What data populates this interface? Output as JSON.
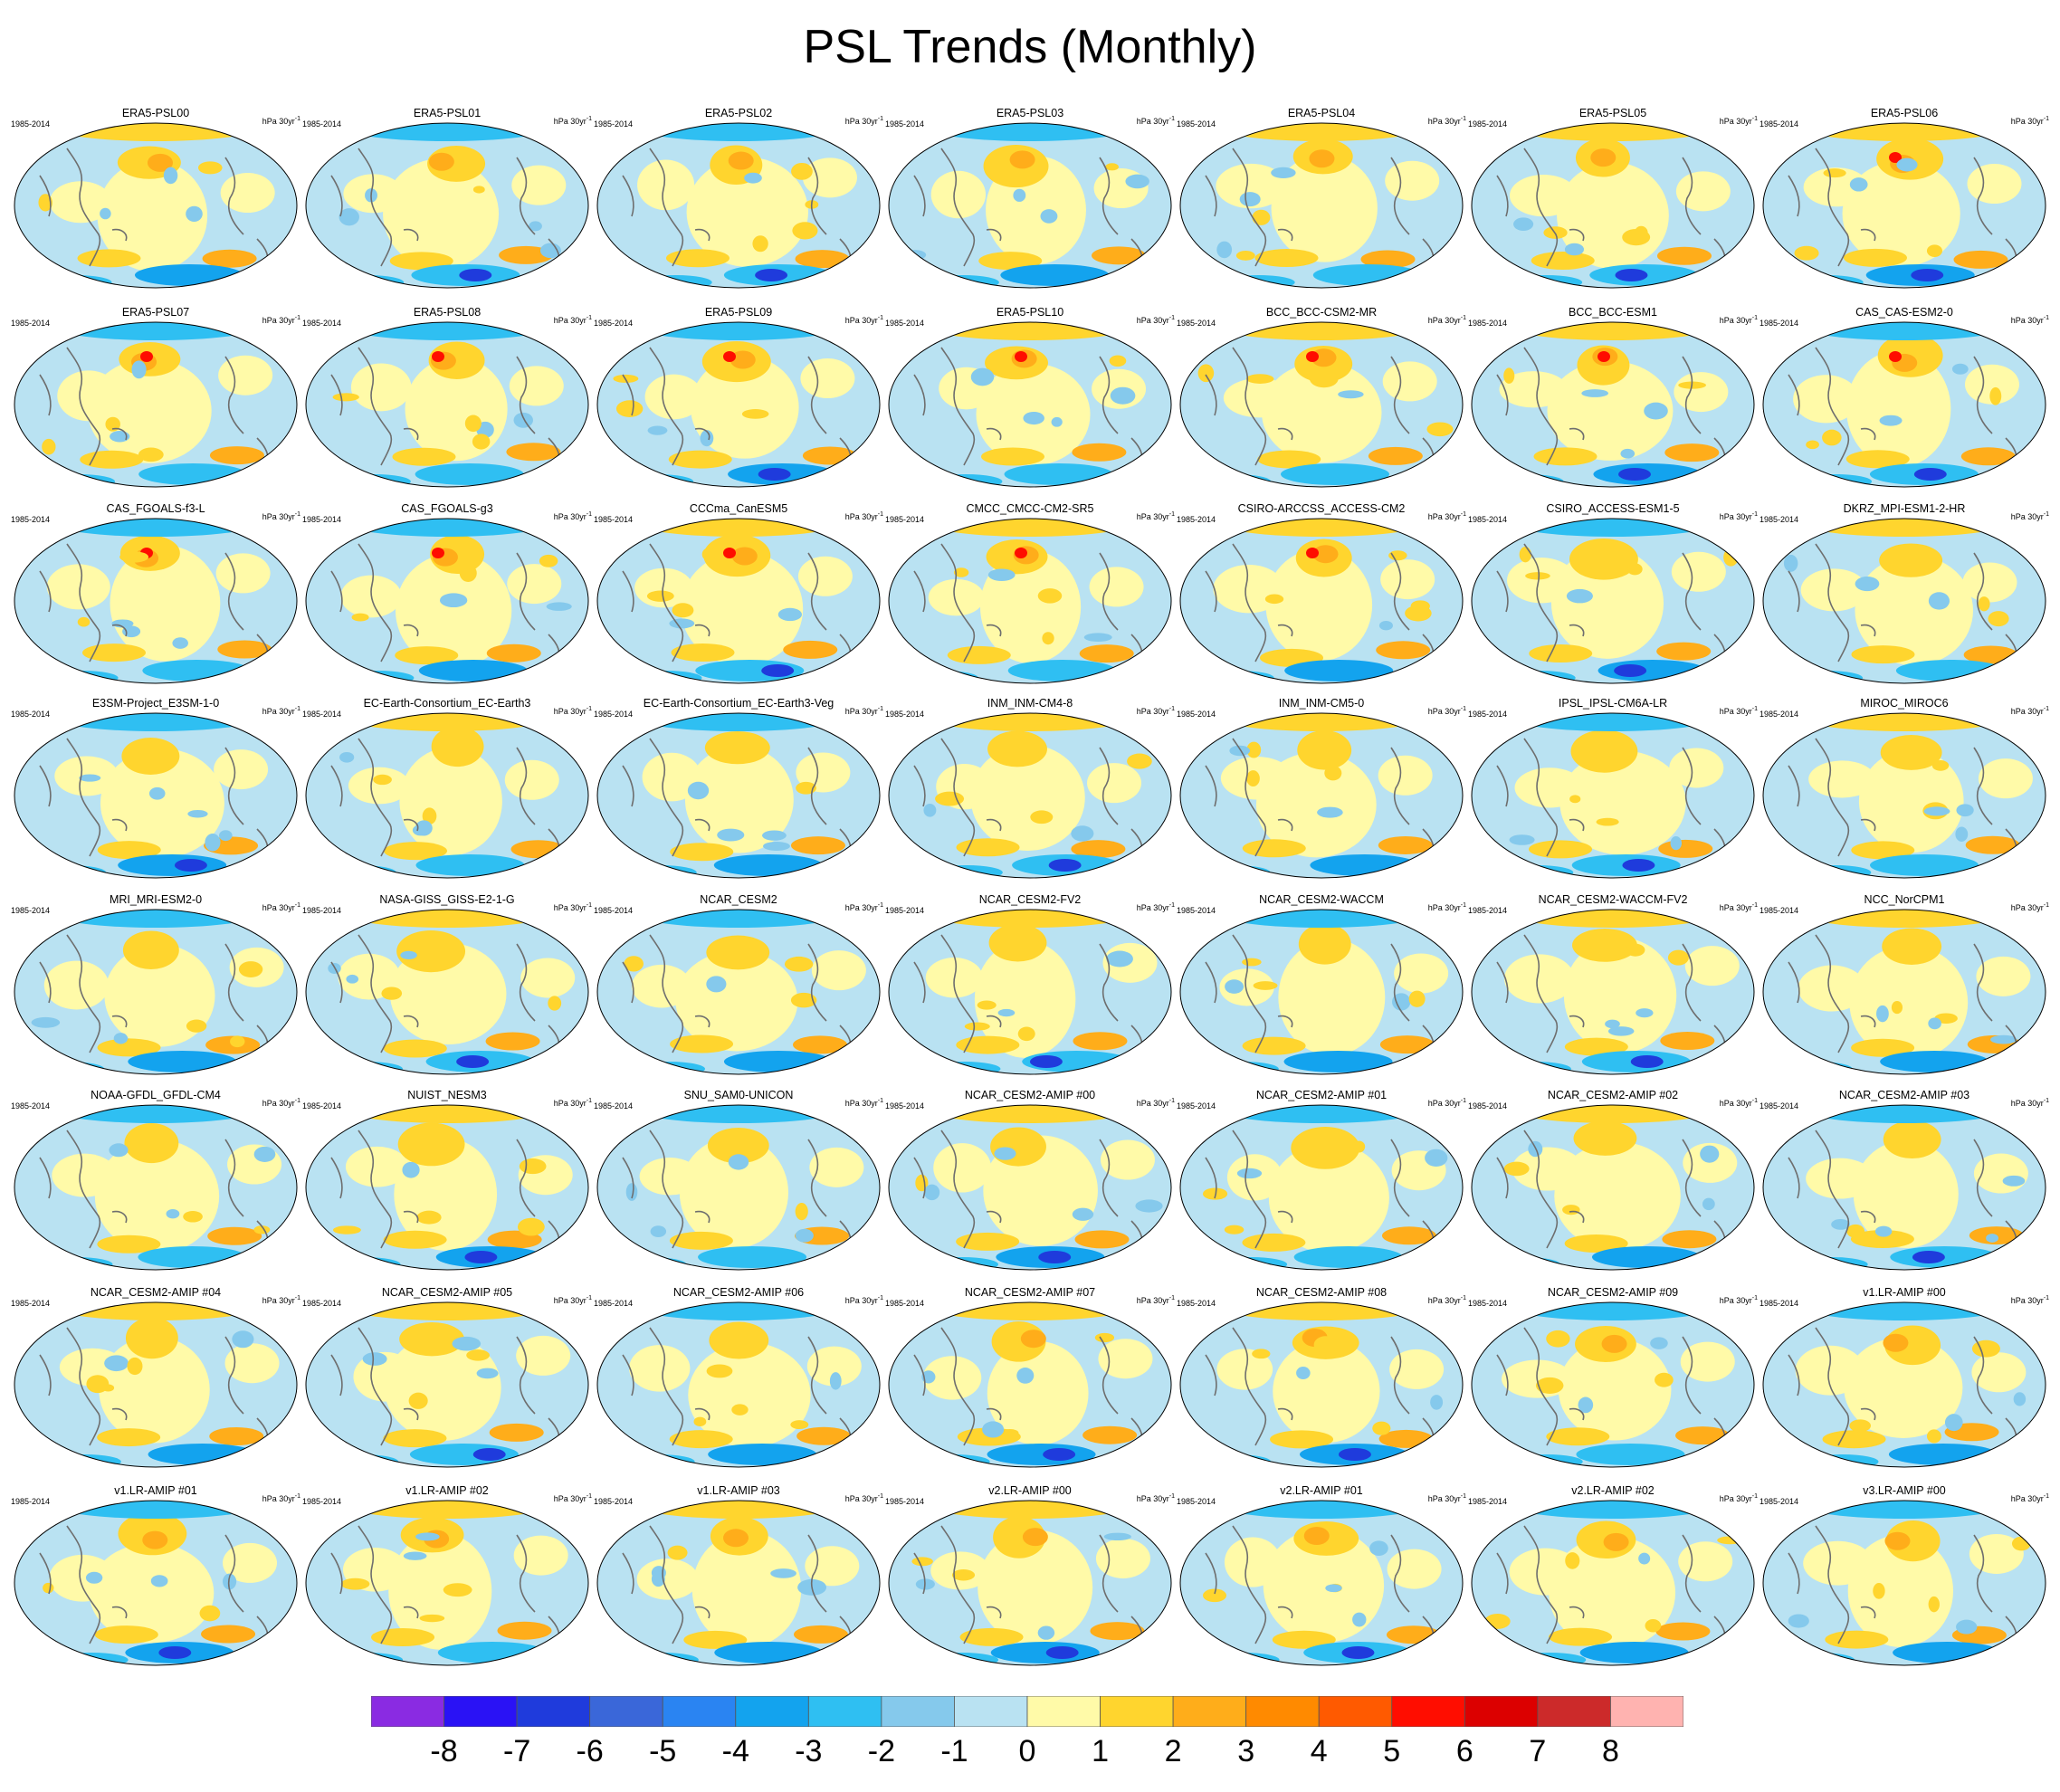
{
  "title": "PSL Trends (Monthly)",
  "chart_data": {
    "type": "heatmap",
    "title": "PSL Trends (Monthly)",
    "period": "1985-2014",
    "units": "hPa 30yr",
    "units_superscript": "-1",
    "projection": "global map",
    "panels": [
      "ERA5-PSL00",
      "ERA5-PSL01",
      "ERA5-PSL02",
      "ERA5-PSL03",
      "ERA5-PSL04",
      "ERA5-PSL05",
      "ERA5-PSL06",
      "ERA5-PSL07",
      "ERA5-PSL08",
      "ERA5-PSL09",
      "ERA5-PSL10",
      "BCC_BCC-CSM2-MR",
      "BCC_BCC-ESM1",
      "CAS_CAS-ESM2-0",
      "CAS_FGOALS-f3-L",
      "CAS_FGOALS-g3",
      "CCCma_CanESM5",
      "CMCC_CMCC-CM2-SR5",
      "CSIRO-ARCCSS_ACCESS-CM2",
      "CSIRO_ACCESS-ESM1-5",
      "DKRZ_MPI-ESM1-2-HR",
      "E3SM-Project_E3SM-1-0",
      "EC-Earth-Consortium_EC-Earth3",
      "EC-Earth-Consortium_EC-Earth3-Veg",
      "INM_INM-CM4-8",
      "INM_INM-CM5-0",
      "IPSL_IPSL-CM6A-LR",
      "MIROC_MIROC6",
      "MRI_MRI-ESM2-0",
      "NASA-GISS_GISS-E2-1-G",
      "NCAR_CESM2",
      "NCAR_CESM2-FV2",
      "NCAR_CESM2-WACCM",
      "NCAR_CESM2-WACCM-FV2",
      "NCC_NorCPM1",
      "NOAA-GFDL_GFDL-CM4",
      "NUIST_NESM3",
      "SNU_SAM0-UNICON",
      "NCAR_CESM2-AMIP  #00",
      "NCAR_CESM2-AMIP  #01",
      "NCAR_CESM2-AMIP  #02",
      "NCAR_CESM2-AMIP  #03",
      "NCAR_CESM2-AMIP  #04",
      "NCAR_CESM2-AMIP  #05",
      "NCAR_CESM2-AMIP  #06",
      "NCAR_CESM2-AMIP  #07",
      "NCAR_CESM2-AMIP  #08",
      "NCAR_CESM2-AMIP  #09",
      "v1.LR-AMIP  #00",
      "v1.LR-AMIP  #01",
      "v1.LR-AMIP  #02",
      "v1.LR-AMIP  #03",
      "v2.LR-AMIP  #00",
      "v2.LR-AMIP  #01",
      "v2.LR-AMIP  #02",
      "v3.LR-AMIP  #00"
    ],
    "colorbar": {
      "labels": [
        "-8",
        "-7",
        "-6",
        "-5",
        "-4",
        "-3",
        "-2",
        "-1",
        "0",
        "1",
        "2",
        "3",
        "4",
        "5",
        "6",
        "7",
        "8"
      ],
      "colors": [
        "#8a2be2",
        "#2a12f5",
        "#1f3bdc",
        "#3a67d9",
        "#2a84f2",
        "#13a3ee",
        "#2fbff2",
        "#85c9ec",
        "#b9e2f2",
        "#fffaa8",
        "#ffd52e",
        "#ffad1a",
        "#ff8a00",
        "#ff5a00",
        "#ff0d00",
        "#dc0000",
        "#cc2a2a",
        "#ffb3b0"
      ]
    }
  }
}
